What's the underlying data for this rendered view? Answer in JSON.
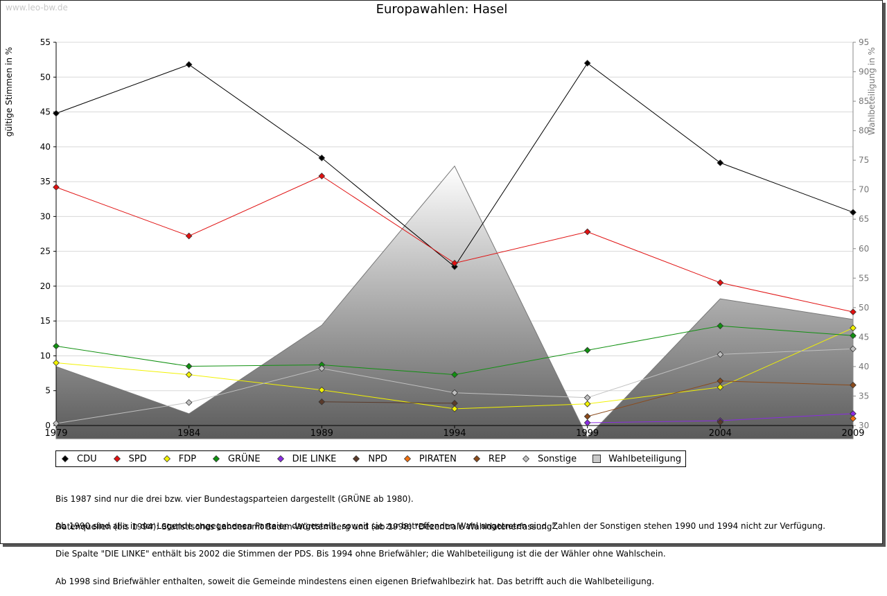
{
  "watermark": "www.leo-bw.de",
  "chart_data": {
    "type": "line",
    "title": "Europawahlen: Hasel",
    "ylabel": "gültige Stimmen in %",
    "y2label": "Wahlbeteiligung in %",
    "ylim": [
      0,
      55
    ],
    "y2lim": [
      30,
      95
    ],
    "yticks": [
      0,
      5,
      10,
      15,
      20,
      25,
      30,
      35,
      40,
      45,
      50,
      55
    ],
    "y2ticks": [
      30,
      35,
      40,
      45,
      50,
      55,
      60,
      65,
      70,
      75,
      80,
      85,
      90,
      95
    ],
    "x": [
      1979,
      1984,
      1989,
      1994,
      1999,
      2004,
      2009
    ],
    "grid": true,
    "legend_position": "bottom",
    "series": [
      {
        "name": "CDU",
        "color": "#000000",
        "values": [
          44.8,
          51.8,
          38.4,
          22.8,
          52.0,
          37.7,
          30.6
        ]
      },
      {
        "name": "SPD",
        "color": "#e01010",
        "values": [
          34.2,
          27.2,
          35.8,
          23.3,
          27.8,
          20.5,
          16.3
        ]
      },
      {
        "name": "FDP",
        "color": "#f2f200",
        "values": [
          9.0,
          7.3,
          5.1,
          2.4,
          3.1,
          5.5,
          14.0
        ]
      },
      {
        "name": "GRÜNE",
        "color": "#109010",
        "values": [
          11.4,
          8.5,
          8.7,
          7.3,
          10.8,
          14.3,
          12.9
        ]
      },
      {
        "name": "DIE LINKE",
        "color": "#8a2be2",
        "values": [
          null,
          null,
          null,
          null,
          0.4,
          0.7,
          1.7
        ]
      },
      {
        "name": "NPD",
        "color": "#5a3a2a",
        "values": [
          null,
          null,
          3.4,
          3.2,
          null,
          0.5,
          null
        ]
      },
      {
        "name": "PIRATEN",
        "color": "#f07010",
        "values": [
          null,
          null,
          null,
          null,
          null,
          null,
          1.0
        ]
      },
      {
        "name": "REP",
        "color": "#8b4a1a",
        "values": [
          null,
          null,
          null,
          null,
          1.3,
          6.4,
          5.8
        ]
      },
      {
        "name": "Sonstige",
        "color": "#c0c0c0",
        "values": [
          0.3,
          3.3,
          8.2,
          4.7,
          4.0,
          10.2,
          11.0
        ]
      }
    ],
    "area_series": {
      "name": "Wahlbeteiligung",
      "axis": "right",
      "values": [
        40.0,
        32.0,
        47.0,
        74.0,
        28.0,
        51.5,
        48.0
      ]
    }
  },
  "legend": {
    "items": [
      {
        "label": "CDU",
        "color": "#000000",
        "shape": "diamond"
      },
      {
        "label": "SPD",
        "color": "#e01010",
        "shape": "diamond"
      },
      {
        "label": "FDP",
        "color": "#f2f200",
        "shape": "diamond"
      },
      {
        "label": "GRÜNE",
        "color": "#109010",
        "shape": "diamond"
      },
      {
        "label": "DIE LINKE",
        "color": "#8a2be2",
        "shape": "diamond"
      },
      {
        "label": "NPD",
        "color": "#5a3a2a",
        "shape": "diamond"
      },
      {
        "label": "PIRATEN",
        "color": "#f07010",
        "shape": "diamond"
      },
      {
        "label": "REP",
        "color": "#8b4a1a",
        "shape": "diamond"
      },
      {
        "label": "Sonstige",
        "color": "#c0c0c0",
        "shape": "diamond"
      },
      {
        "label": "Wahlbeteiligung",
        "color": "#c8c8c8",
        "shape": "square"
      }
    ]
  },
  "notes": [
    "Bis 1987 sind nur die drei bzw. vier Bundestagsparteien dargestellt (GRÜNE ab 1980).",
    "Ab 1990 sind alle in der Legende angegebenen Parteien dargestellt, soweit sie zur betreffenden Wahl angetreten sind. Zahlen der Sonstigen stehen 1990 und 1994 nicht zur Verfügung.",
    "Die Spalte \"DIE LINKE\" enthält bis 2002 die Stimmen der PDS. Bis 1994 ohne Briefwähler; die Wahlbeteiligung ist die der Wähler ohne Wahlschein.",
    "Ab 1998 sind Briefwähler enthalten, soweit die Gemeinde mindestens einen eigenen Briefwahlbezirk hat. Das betrifft auch die Wahlbeteiligung."
  ],
  "source": "Datenquellen (bis 1994): Statistisches Landesamt Baden-Württemberg und (ab 1998) \"Dezentrale Wahldatenerfassung\"."
}
